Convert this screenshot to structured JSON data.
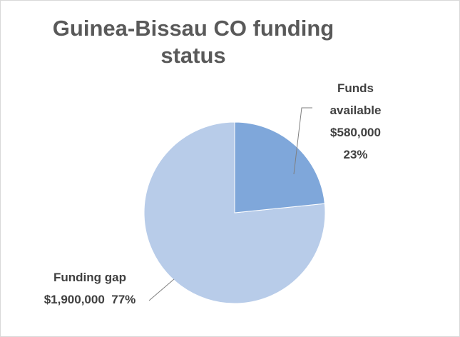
{
  "chart_data": {
    "type": "pie",
    "title": "Guinea-Bissau CO funding status",
    "categories": [
      "Funds available",
      "Funding gap"
    ],
    "values": [
      580000,
      1900000
    ],
    "value_labels": [
      "$580,000",
      "$1,900,000"
    ],
    "percent_labels": [
      "23%",
      "77%"
    ],
    "colors": [
      "#7fa7da",
      "#b8cce9"
    ]
  }
}
